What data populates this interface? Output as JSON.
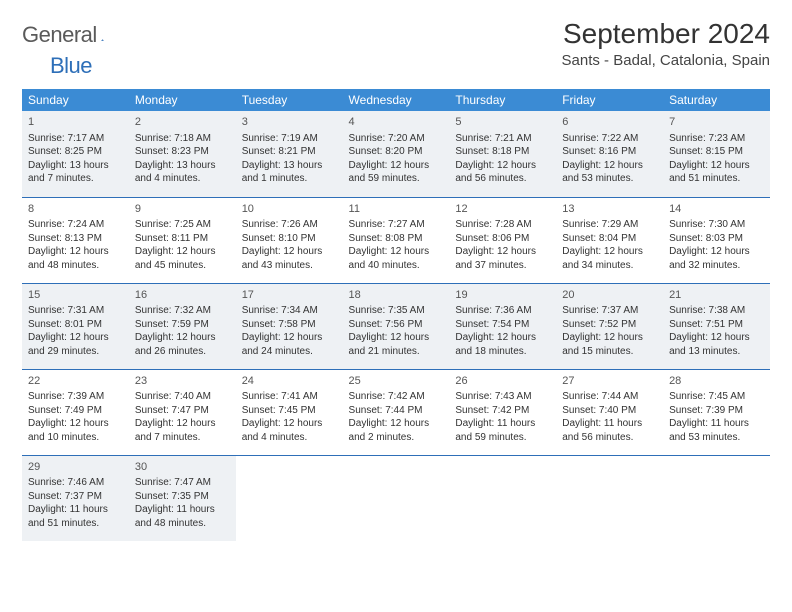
{
  "logo": {
    "text1": "General",
    "text2": "Blue"
  },
  "title": "September 2024",
  "location": "Sants - Badal, Catalonia, Spain",
  "colors": {
    "header_bg": "#3b8bd4",
    "border": "#2e6fb8",
    "shade": "#eef1f4",
    "text": "#333333"
  },
  "weekdays": [
    "Sunday",
    "Monday",
    "Tuesday",
    "Wednesday",
    "Thursday",
    "Friday",
    "Saturday"
  ],
  "weeks": [
    [
      {
        "d": "1",
        "sr": "7:17 AM",
        "ss": "8:25 PM",
        "dl": "13 hours and 7 minutes."
      },
      {
        "d": "2",
        "sr": "7:18 AM",
        "ss": "8:23 PM",
        "dl": "13 hours and 4 minutes."
      },
      {
        "d": "3",
        "sr": "7:19 AM",
        "ss": "8:21 PM",
        "dl": "13 hours and 1 minutes."
      },
      {
        "d": "4",
        "sr": "7:20 AM",
        "ss": "8:20 PM",
        "dl": "12 hours and 59 minutes."
      },
      {
        "d": "5",
        "sr": "7:21 AM",
        "ss": "8:18 PM",
        "dl": "12 hours and 56 minutes."
      },
      {
        "d": "6",
        "sr": "7:22 AM",
        "ss": "8:16 PM",
        "dl": "12 hours and 53 minutes."
      },
      {
        "d": "7",
        "sr": "7:23 AM",
        "ss": "8:15 PM",
        "dl": "12 hours and 51 minutes."
      }
    ],
    [
      {
        "d": "8",
        "sr": "7:24 AM",
        "ss": "8:13 PM",
        "dl": "12 hours and 48 minutes."
      },
      {
        "d": "9",
        "sr": "7:25 AM",
        "ss": "8:11 PM",
        "dl": "12 hours and 45 minutes."
      },
      {
        "d": "10",
        "sr": "7:26 AM",
        "ss": "8:10 PM",
        "dl": "12 hours and 43 minutes."
      },
      {
        "d": "11",
        "sr": "7:27 AM",
        "ss": "8:08 PM",
        "dl": "12 hours and 40 minutes."
      },
      {
        "d": "12",
        "sr": "7:28 AM",
        "ss": "8:06 PM",
        "dl": "12 hours and 37 minutes."
      },
      {
        "d": "13",
        "sr": "7:29 AM",
        "ss": "8:04 PM",
        "dl": "12 hours and 34 minutes."
      },
      {
        "d": "14",
        "sr": "7:30 AM",
        "ss": "8:03 PM",
        "dl": "12 hours and 32 minutes."
      }
    ],
    [
      {
        "d": "15",
        "sr": "7:31 AM",
        "ss": "8:01 PM",
        "dl": "12 hours and 29 minutes."
      },
      {
        "d": "16",
        "sr": "7:32 AM",
        "ss": "7:59 PM",
        "dl": "12 hours and 26 minutes."
      },
      {
        "d": "17",
        "sr": "7:34 AM",
        "ss": "7:58 PM",
        "dl": "12 hours and 24 minutes."
      },
      {
        "d": "18",
        "sr": "7:35 AM",
        "ss": "7:56 PM",
        "dl": "12 hours and 21 minutes."
      },
      {
        "d": "19",
        "sr": "7:36 AM",
        "ss": "7:54 PM",
        "dl": "12 hours and 18 minutes."
      },
      {
        "d": "20",
        "sr": "7:37 AM",
        "ss": "7:52 PM",
        "dl": "12 hours and 15 minutes."
      },
      {
        "d": "21",
        "sr": "7:38 AM",
        "ss": "7:51 PM",
        "dl": "12 hours and 13 minutes."
      }
    ],
    [
      {
        "d": "22",
        "sr": "7:39 AM",
        "ss": "7:49 PM",
        "dl": "12 hours and 10 minutes."
      },
      {
        "d": "23",
        "sr": "7:40 AM",
        "ss": "7:47 PM",
        "dl": "12 hours and 7 minutes."
      },
      {
        "d": "24",
        "sr": "7:41 AM",
        "ss": "7:45 PM",
        "dl": "12 hours and 4 minutes."
      },
      {
        "d": "25",
        "sr": "7:42 AM",
        "ss": "7:44 PM",
        "dl": "12 hours and 2 minutes."
      },
      {
        "d": "26",
        "sr": "7:43 AM",
        "ss": "7:42 PM",
        "dl": "11 hours and 59 minutes."
      },
      {
        "d": "27",
        "sr": "7:44 AM",
        "ss": "7:40 PM",
        "dl": "11 hours and 56 minutes."
      },
      {
        "d": "28",
        "sr": "7:45 AM",
        "ss": "7:39 PM",
        "dl": "11 hours and 53 minutes."
      }
    ],
    [
      {
        "d": "29",
        "sr": "7:46 AM",
        "ss": "7:37 PM",
        "dl": "11 hours and 51 minutes."
      },
      {
        "d": "30",
        "sr": "7:47 AM",
        "ss": "7:35 PM",
        "dl": "11 hours and 48 minutes."
      },
      null,
      null,
      null,
      null,
      null
    ]
  ],
  "labels": {
    "sunrise": "Sunrise: ",
    "sunset": "Sunset: ",
    "daylight": "Daylight: "
  }
}
